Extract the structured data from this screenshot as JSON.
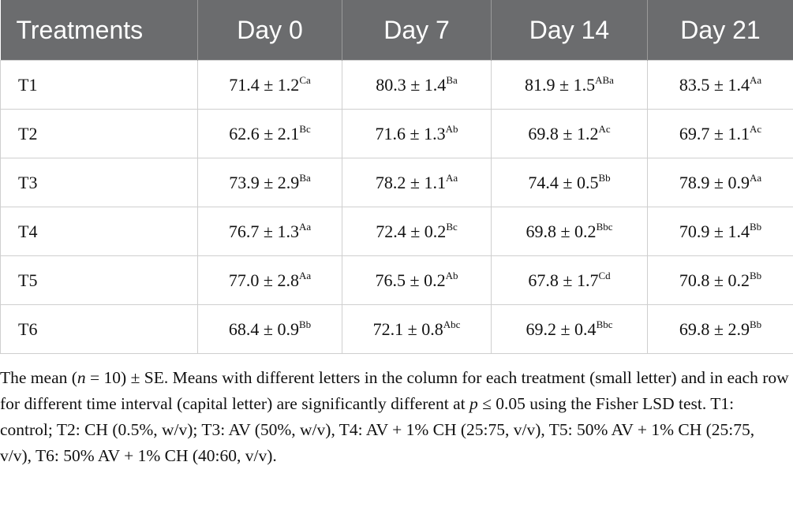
{
  "table": {
    "header": [
      "Treatments",
      "Day 0",
      "Day 7",
      "Day 14",
      "Day 21"
    ],
    "rows": [
      [
        "T1",
        {
          "main": "71.4 ± 1.2",
          "sup": "Ca"
        },
        {
          "main": "80.3 ± 1.4",
          "sup": "Ba"
        },
        {
          "main": "81.9 ± 1.5",
          "sup": "ABa"
        },
        {
          "main": "83.5 ± 1.4",
          "sup": "Aa"
        }
      ],
      [
        "T2",
        {
          "main": "62.6 ± 2.1",
          "sup": "Bc"
        },
        {
          "main": "71.6 ± 1.3",
          "sup": "Ab"
        },
        {
          "main": "69.8 ± 1.2",
          "sup": "Ac"
        },
        {
          "main": "69.7 ± 1.1",
          "sup": "Ac"
        }
      ],
      [
        "T3",
        {
          "main": "73.9 ± 2.9",
          "sup": "Ba"
        },
        {
          "main": "78.2 ± 1.1",
          "sup": "Aa"
        },
        {
          "main": "74.4 ± 0.5",
          "sup": "Bb"
        },
        {
          "main": "78.9 ± 0.9",
          "sup": "Aa"
        }
      ],
      [
        "T4",
        {
          "main": "76.7 ± 1.3",
          "sup": "Aa"
        },
        {
          "main": "72.4 ± 0.2",
          "sup": "Bc"
        },
        {
          "main": "69.8 ± 0.2",
          "sup": "Bbc"
        },
        {
          "main": "70.9 ± 1.4",
          "sup": "Bb"
        }
      ],
      [
        "T5",
        {
          "main": "77.0 ± 2.8",
          "sup": "Aa"
        },
        {
          "main": "76.5 ± 0.2",
          "sup": "Ab"
        },
        {
          "main": "67.8 ± 1.7",
          "sup": "Cd"
        },
        {
          "main": "70.8 ± 0.2",
          "sup": "Bb"
        }
      ],
      [
        "T6",
        {
          "main": "68.4 ± 0.9",
          "sup": "Bb"
        },
        {
          "main": "72.1 ± 0.8",
          "sup": "Abc"
        },
        {
          "main": "69.2 ± 0.4",
          "sup": "Bbc"
        },
        {
          "main": "69.8 ± 2.9",
          "sup": "Bb"
        }
      ]
    ]
  },
  "footnote": [
    {
      "text": "The mean (",
      "italic": false
    },
    {
      "text": "n",
      "italic": true
    },
    {
      "text": " = 10) ± SE. Means with different letters in the column for each treatment (small letter) and in each row for different time interval (capital letter) are significantly different at ",
      "italic": false
    },
    {
      "text": "p",
      "italic": true
    },
    {
      "text": " ≤ 0.05 using the Fisher LSD test. T1: control; T2: CH (0.5%, w/v); T3: AV (50%, w/v), T4: AV + 1% CH (25:75, v/v), T5: 50% AV + 1% CH (25:75, v/v), T6: 50% AV + 1% CH (40:60, v/v).",
      "italic": false
    }
  ]
}
